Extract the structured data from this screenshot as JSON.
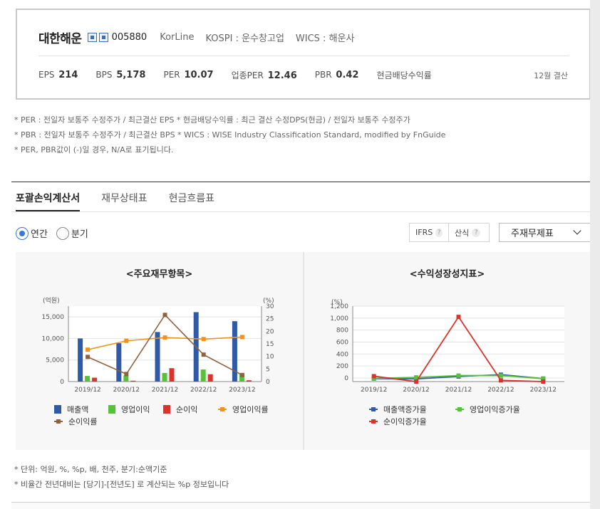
{
  "company": {
    "name": "대한해운",
    "code": "005880",
    "eng_name": "KorLine",
    "kospi": "KOSPI : 운수창고업",
    "wics": "WICS : 해운사"
  },
  "stats": [
    {
      "label": "EPS",
      "value": "214"
    },
    {
      "label": "BPS",
      "value": "5,178"
    },
    {
      "label": "PER",
      "value": "10.07"
    },
    {
      "label": "업종PER",
      "value": "12.46"
    },
    {
      "label": "PBR",
      "value": "0.42"
    },
    {
      "label": "현금배당수익률",
      "value": ""
    }
  ],
  "settlement": "12월 결산",
  "notes": [
    "* PER : 전일자 보통주 수정주가 / 최근결산 EPS * 현금배당수익률 : 최근 결산 수정DPS(현금) / 전일자 보통주 수정주가",
    "* PBR : 전일자 보통주 수정주가 / 최근결산 BPS * WICS : WISE Industry Classification Standard, modified by FnGuide",
    "* PER, PBR값이 (-)일 경우, N/A로 표기됩니다."
  ],
  "tabs": [
    "포괄손익계산서",
    "재무상태표",
    "현금흐름표"
  ],
  "period": {
    "annual": "연간",
    "quarter": "분기"
  },
  "ifrs_label": "IFRS",
  "calc_label": "산식",
  "qmark": "?",
  "select_value": "주재무제표",
  "chart_data": [
    {
      "type": "bar",
      "title": "<주요재무항목>",
      "ylabel_left": "(억원)",
      "ylabel_right": "(%)",
      "categories": [
        "2019/12",
        "2020/12",
        "2021/12",
        "2022/12",
        "2023/12"
      ],
      "ylim_left": [
        0,
        17500
      ],
      "yticks_left": [
        "0",
        "5,000",
        "10,000",
        "15,000"
      ],
      "ylim_right": [
        0,
        30
      ],
      "yticks_right": [
        "0",
        "5",
        "10",
        "15",
        "20",
        "25",
        "30"
      ],
      "bar_series": [
        {
          "name": "매출액",
          "color": "#2e5aa8",
          "values": [
            10000,
            8900,
            11500,
            16100,
            14000
          ]
        },
        {
          "name": "영업이익",
          "color": "#57c139",
          "values": [
            1300,
            1400,
            2000,
            2800,
            1700
          ]
        },
        {
          "name": "순이익",
          "color": "#d9342b",
          "values": [
            900,
            200,
            3100,
            1700,
            300
          ]
        }
      ],
      "line_series": [
        {
          "name": "영업이익률",
          "color": "#f0921c",
          "values": [
            12.7,
            16.2,
            17.5,
            16.9,
            17.7
          ]
        },
        {
          "name": "순이익률",
          "color": "#8e6240",
          "values": [
            9.8,
            3.0,
            26.5,
            10.7,
            2.6
          ]
        }
      ]
    },
    {
      "type": "line",
      "title": "<수익성장성지표>",
      "ylabel": "(%)",
      "categories": [
        "2019/12",
        "2020/12",
        "2021/12",
        "2022/12",
        "2023/12"
      ],
      "ylim": [
        -60,
        1200
      ],
      "yticks": [
        "0",
        "200",
        "400",
        "600",
        "800",
        "1,000",
        "1,200"
      ],
      "series": [
        {
          "name": "매출액증가율",
          "color": "#2e5aa8",
          "values": [
            -10,
            -15,
            25,
            55,
            -10
          ]
        },
        {
          "name": "영업이익증가율",
          "color": "#57c139",
          "values": [
            -5,
            10,
            40,
            40,
            -10
          ]
        },
        {
          "name": "순이익증가율",
          "color": "#d9342b",
          "values": [
            30,
            -60,
            1020,
            -40,
            -60
          ]
        }
      ]
    }
  ],
  "footnotes": [
    "* 단위: 억원, %, %p, 배, 천주, 분기:순액기준",
    "* 비율간 전년대비는 [당기]-[전년도] 로 계산되는 %p 정보입니다"
  ]
}
